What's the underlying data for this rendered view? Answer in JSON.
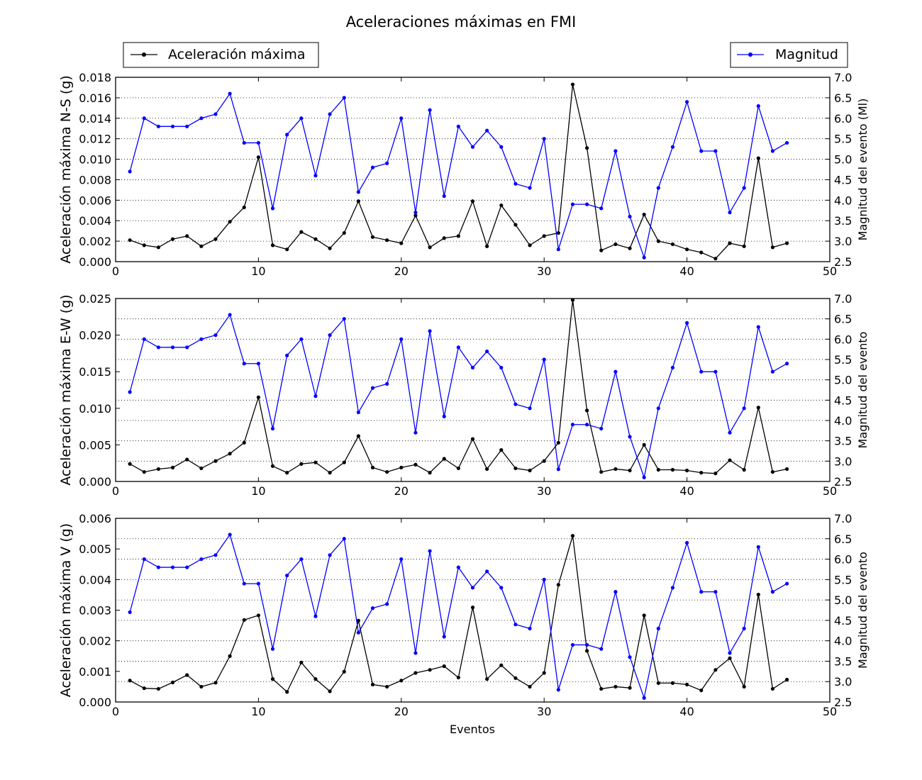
{
  "figure": {
    "title": "Aceleraciones máximas en FMI",
    "xlabel": "Eventos"
  },
  "legend": {
    "accel_label": "Aceleración máxima",
    "magnitude_label": "Magnitud"
  },
  "colors": {
    "acceleration": "#000000",
    "magnitude": "#0000ff"
  },
  "chart_data": [
    {
      "type": "line",
      "title": "Aceleraciones máximas en FMI",
      "xlabel": "",
      "ylabel": "Aceleración máxima N-S (g)",
      "y2label": "Magnitud del evento (Ml)",
      "xlim": [
        0,
        50
      ],
      "ylim": [
        0,
        0.018
      ],
      "y2lim": [
        2.5,
        7.0
      ],
      "xticks": [
        "0",
        "10",
        "20",
        "30",
        "40",
        "50"
      ],
      "yticks": [
        "0.000",
        "0.002",
        "0.004",
        "0.006",
        "0.008",
        "0.010",
        "0.012",
        "0.014",
        "0.016",
        "0.018"
      ],
      "y2ticks": [
        "2.5",
        "3.0",
        "3.5",
        "4.0",
        "4.5",
        "5.0",
        "5.5",
        "6.0",
        "6.5",
        "7.0"
      ],
      "grid": "y-dotted",
      "series": [
        {
          "name": "Aceleración máxima",
          "axis": "left",
          "values": [
            0.0021,
            0.0016,
            0.0014,
            0.0022,
            0.0025,
            0.0015,
            0.0022,
            0.0039,
            0.0053,
            0.0102,
            0.0016,
            0.0012,
            0.0029,
            0.0022,
            0.0013,
            0.0028,
            0.0059,
            0.0024,
            0.0021,
            0.0018,
            0.0045,
            0.0014,
            0.0023,
            0.0025,
            0.0059,
            0.0015,
            0.0055,
            0.0036,
            0.0016,
            0.0025,
            0.0028,
            0.0173,
            0.0111,
            0.0011,
            0.0017,
            0.0013,
            0.0046,
            0.002,
            0.0017,
            0.0012,
            0.0009,
            0.0003,
            0.0018,
            0.0015,
            0.0101,
            0.0014,
            0.0018
          ]
        },
        {
          "name": "Magnitud",
          "axis": "right",
          "values": [
            4.7,
            6.0,
            5.8,
            5.8,
            5.8,
            6.0,
            6.1,
            6.6,
            5.4,
            5.4,
            3.8,
            5.6,
            6.0,
            4.6,
            6.1,
            6.5,
            4.2,
            4.8,
            4.9,
            6.0,
            3.7,
            6.2,
            4.1,
            5.8,
            5.3,
            5.7,
            5.3,
            4.4,
            4.3,
            5.5,
            2.8,
            3.9,
            3.9,
            3.8,
            5.2,
            3.6,
            2.6,
            4.3,
            5.3,
            6.4,
            5.2,
            5.2,
            3.7,
            4.3,
            6.3,
            5.2,
            5.4
          ]
        }
      ]
    },
    {
      "type": "line",
      "xlabel": "",
      "ylabel": "Aceleración máxima E-W (g)",
      "y2label": "Magnitud del evento",
      "xlim": [
        0,
        50
      ],
      "ylim": [
        0,
        0.025
      ],
      "y2lim": [
        2.5,
        7.0
      ],
      "xticks": [
        "0",
        "10",
        "20",
        "30",
        "40",
        "50"
      ],
      "yticks": [
        "0.000",
        "0.005",
        "0.010",
        "0.015",
        "0.020",
        "0.025"
      ],
      "y2ticks": [
        "2.5",
        "3.0",
        "3.5",
        "4.0",
        "4.5",
        "5.0",
        "5.5",
        "6.0",
        "6.5",
        "7.0"
      ],
      "grid": "y-dotted",
      "series": [
        {
          "name": "Aceleración máxima",
          "axis": "left",
          "values": [
            0.0024,
            0.0013,
            0.0017,
            0.0019,
            0.003,
            0.0018,
            0.0028,
            0.0038,
            0.0053,
            0.0115,
            0.0021,
            0.0012,
            0.0024,
            0.0026,
            0.0012,
            0.0026,
            0.0062,
            0.0019,
            0.0013,
            0.0019,
            0.0023,
            0.0012,
            0.0031,
            0.0018,
            0.0058,
            0.0017,
            0.0043,
            0.0018,
            0.0015,
            0.0028,
            0.0053,
            0.0248,
            0.0097,
            0.0013,
            0.0017,
            0.0015,
            0.005,
            0.0016,
            0.0016,
            0.0015,
            0.0012,
            0.0011,
            0.0029,
            0.0016,
            0.0101,
            0.0013,
            0.0017
          ]
        },
        {
          "name": "Magnitud",
          "axis": "right",
          "values": [
            4.7,
            6.0,
            5.8,
            5.8,
            5.8,
            6.0,
            6.1,
            6.6,
            5.4,
            5.4,
            3.8,
            5.6,
            6.0,
            4.6,
            6.1,
            6.5,
            4.2,
            4.8,
            4.9,
            6.0,
            3.7,
            6.2,
            4.1,
            5.8,
            5.3,
            5.7,
            5.3,
            4.4,
            4.3,
            5.5,
            2.8,
            3.9,
            3.9,
            3.8,
            5.2,
            3.6,
            2.6,
            4.3,
            5.3,
            6.4,
            5.2,
            5.2,
            3.7,
            4.3,
            6.3,
            5.2,
            5.4
          ]
        }
      ]
    },
    {
      "type": "line",
      "xlabel": "Eventos",
      "ylabel": "Aceleración máxima V (g)",
      "y2label": "Magnitud del evento",
      "xlim": [
        0,
        50
      ],
      "ylim": [
        0,
        0.006
      ],
      "y2lim": [
        2.5,
        7.0
      ],
      "xticks": [
        "0",
        "10",
        "20",
        "30",
        "40",
        "50"
      ],
      "yticks": [
        "0.000",
        "0.001",
        "0.002",
        "0.003",
        "0.004",
        "0.005",
        "0.006"
      ],
      "y2ticks": [
        "2.5",
        "3.0",
        "3.5",
        "4.0",
        "4.5",
        "5.0",
        "5.5",
        "6.0",
        "6.5",
        "7.0"
      ],
      "grid": "y-dotted",
      "series": [
        {
          "name": "Aceleración máxima",
          "axis": "left",
          "values": [
            0.0007,
            0.00045,
            0.00043,
            0.00064,
            0.00088,
            0.0005,
            0.00063,
            0.0015,
            0.00268,
            0.00283,
            0.00075,
            0.00033,
            0.00129,
            0.00075,
            0.00035,
            0.00099,
            0.00266,
            0.00057,
            0.0005,
            0.0007,
            0.00095,
            0.00105,
            0.00117,
            0.0008,
            0.00309,
            0.00075,
            0.0012,
            0.00078,
            0.0005,
            0.00095,
            0.00383,
            0.00543,
            0.00167,
            0.00043,
            0.0005,
            0.00046,
            0.00283,
            0.00062,
            0.00062,
            0.00057,
            0.00038,
            0.00105,
            0.00143,
            0.0005,
            0.00351,
            0.00043,
            0.00073
          ]
        },
        {
          "name": "Magnitud",
          "axis": "right",
          "values": [
            4.7,
            6.0,
            5.8,
            5.8,
            5.8,
            6.0,
            6.1,
            6.6,
            5.4,
            5.4,
            3.8,
            5.6,
            6.0,
            4.6,
            6.1,
            6.5,
            4.2,
            4.8,
            4.9,
            6.0,
            3.7,
            6.2,
            4.1,
            5.8,
            5.3,
            5.7,
            5.3,
            4.4,
            4.3,
            5.5,
            2.8,
            3.9,
            3.9,
            3.8,
            5.2,
            3.6,
            2.6,
            4.3,
            5.3,
            6.4,
            5.2,
            5.2,
            3.7,
            4.3,
            6.3,
            5.2,
            5.4
          ]
        }
      ]
    }
  ]
}
